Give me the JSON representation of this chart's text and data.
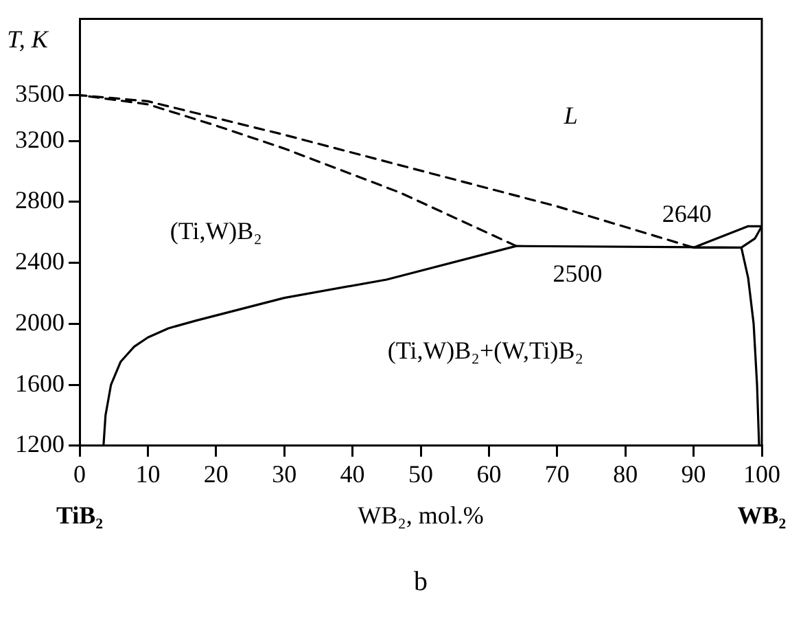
{
  "chart_data": {
    "type": "line",
    "xlabel": "WB₂, mol.%",
    "ylabel": "T, K",
    "xlim": [
      0,
      100
    ],
    "ylim": [
      1200,
      4000
    ],
    "xticks": [
      0,
      10,
      20,
      30,
      40,
      50,
      60,
      70,
      80,
      90,
      100
    ],
    "yticks": [
      1200,
      1600,
      2000,
      2400,
      2800,
      3200,
      3500
    ],
    "grid": false,
    "legend": false,
    "marker": "none",
    "series": [
      {
        "color": "#000000",
        "line_style": "solid",
        "x": [
          3.5,
          3.8,
          4.6,
          6,
          8,
          10,
          13,
          17,
          30,
          45,
          64,
          97,
          99,
          100,
          98,
          90,
          97,
          98,
          98.8,
          99.3,
          99.6
        ],
        "values": [
          1200,
          1400,
          1600,
          1750,
          1850,
          1910,
          1970,
          2020,
          2170,
          2290,
          2510,
          2500,
          2560,
          2640,
          2640,
          2500,
          2500,
          2300,
          2000,
          1600,
          1200
        ]
      },
      {
        "color": "#000000",
        "line_style": "dashed",
        "x": [
          64,
          47,
          30,
          20,
          10,
          0,
          10,
          20,
          30,
          47,
          70,
          90
        ],
        "values": [
          2510,
          2860,
          3150,
          3300,
          3440,
          3500,
          3460,
          3350,
          3240,
          3040,
          2770,
          2500
        ]
      }
    ],
    "annotations": [
      "L",
      "(Ti,W)B₂",
      "(Ti,W)B₂+(W,Ti)B₂",
      "2640",
      "2500",
      "TiB₂",
      "WB₂",
      "b"
    ]
  }
}
